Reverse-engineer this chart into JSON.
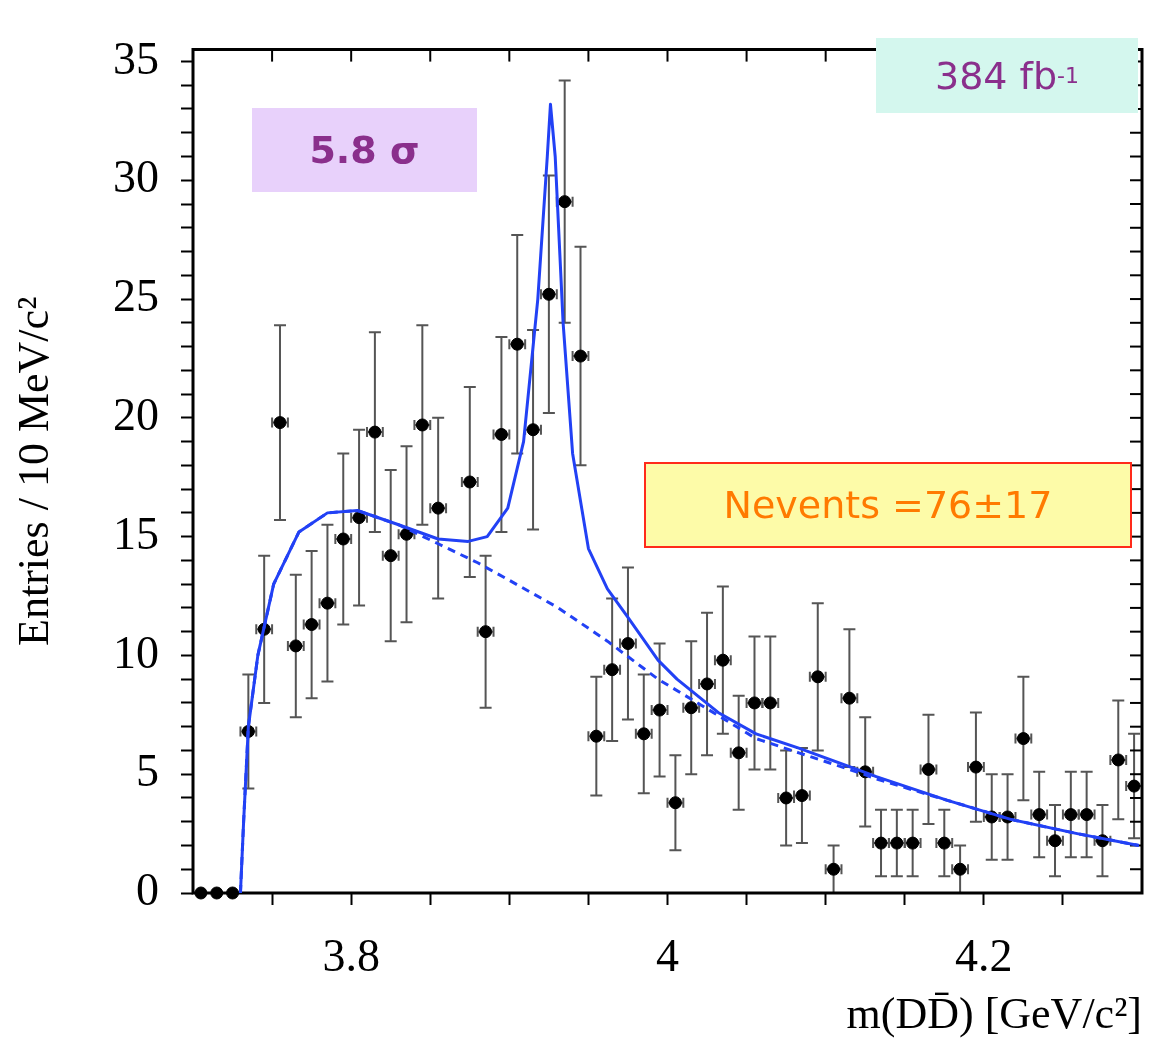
{
  "chart_data": {
    "type": "scatter",
    "xlabel": "m(DD̄) [GeV/c²]",
    "ylabel": "Entries / 10 MeV/c²",
    "annotations": [
      "5.8 σ",
      "384 fb$^{-1}$",
      "Nevents =76±17"
    ],
    "xlim": [
      3.7,
      4.3
    ],
    "ylim": [
      0,
      35.5
    ],
    "xticks": [
      {
        "value": 3.75,
        "label": null
      },
      3.8,
      {
        "value": 3.85,
        "label": null
      },
      {
        "value": 3.9,
        "label": null
      },
      {
        "value": 3.95,
        "label": null
      },
      4,
      {
        "value": 4.05,
        "label": null
      },
      {
        "value": 4.1,
        "label": null
      },
      {
        "value": 4.15,
        "label": null
      },
      4.2,
      {
        "value": 4.25,
        "label": null
      }
    ],
    "yticks": [
      0,
      {
        "value": 1,
        "label": null
      },
      {
        "value": 2,
        "label": null
      },
      {
        "value": 3,
        "label": null
      },
      {
        "value": 4,
        "label": null
      },
      5,
      {
        "value": 6,
        "label": null
      },
      {
        "value": 7,
        "label": null
      },
      {
        "value": 8,
        "label": null
      },
      {
        "value": 9,
        "label": null
      },
      10,
      {
        "value": 11,
        "label": null
      },
      {
        "value": 12,
        "label": null
      },
      {
        "value": 13,
        "label": null
      },
      {
        "value": 14,
        "label": null
      },
      15,
      {
        "value": 16,
        "label": null
      },
      {
        "value": 17,
        "label": null
      },
      {
        "value": 18,
        "label": null
      },
      {
        "value": 19,
        "label": null
      },
      20,
      {
        "value": 21,
        "label": null
      },
      {
        "value": 22,
        "label": null
      },
      {
        "value": 23,
        "label": null
      },
      {
        "value": 24,
        "label": null
      },
      25,
      {
        "value": 26,
        "label": null
      },
      {
        "value": 27,
        "label": null
      },
      {
        "value": 28,
        "label": null
      },
      {
        "value": 29,
        "label": null
      },
      30,
      {
        "value": 31,
        "label": null
      },
      {
        "value": 32,
        "label": null
      },
      {
        "value": 33,
        "label": null
      },
      {
        "value": 34,
        "label": null
      },
      35
    ],
    "series": [
      {
        "type": "scatter",
        "color": "#000000",
        "marker": "circle",
        "x": [
          3.705,
          3.715,
          3.725,
          3.735,
          3.745,
          3.755,
          3.765,
          3.775,
          3.785,
          3.795,
          3.805,
          3.815,
          3.825,
          3.835,
          3.845,
          3.855,
          3.865,
          3.875,
          3.885,
          3.895,
          3.905,
          3.915,
          3.925,
          3.935,
          3.945,
          3.955,
          3.965,
          3.975,
          3.985,
          3.995,
          4.005,
          4.015,
          4.025,
          4.035,
          4.045,
          4.055,
          4.065,
          4.075,
          4.085,
          4.095,
          4.105,
          4.115,
          4.125,
          4.135,
          4.145,
          4.155,
          4.165,
          4.175,
          4.185,
          4.195,
          4.205,
          4.215,
          4.225,
          4.235,
          4.245,
          4.255,
          4.265,
          4.275,
          4.285,
          4.295
        ],
        "values": [
          0,
          0,
          0,
          6.8,
          11.1,
          19.8,
          10.4,
          11.3,
          12.2,
          14.9,
          15.8,
          19.4,
          14.2,
          15.1,
          19.7,
          16.2,
          null,
          17.3,
          11.0,
          19.3,
          23.1,
          19.5,
          25.2,
          29.1,
          22.6,
          6.6,
          9.4,
          10.5,
          6.7,
          7.7,
          3.8,
          7.8,
          8.8,
          9.8,
          5.9,
          8.0,
          8.0,
          4.0,
          4.1,
          9.1,
          1.0,
          8.2,
          5.1,
          2.1,
          2.1,
          2.1,
          5.2,
          2.1,
          1.0,
          5.3,
          3.2,
          3.2,
          6.5,
          3.3,
          2.2,
          3.3,
          3.3,
          2.2,
          5.6,
          4.5
        ],
        "errors": [
          null,
          null,
          null,
          2.4,
          3.1,
          4.1,
          3.0,
          3.1,
          3.3,
          3.6,
          3.7,
          4.2,
          3.6,
          3.7,
          4.2,
          3.8,
          null,
          4.0,
          3.2,
          4.1,
          4.6,
          4.2,
          5.0,
          5.1,
          4.6,
          2.5,
          3.0,
          3.2,
          2.5,
          2.8,
          2.0,
          2.8,
          3.0,
          3.1,
          2.4,
          2.8,
          2.8,
          2.0,
          2.0,
          3.1,
          1.0,
          2.9,
          2.3,
          1.4,
          1.4,
          1.4,
          2.3,
          1.4,
          1.0,
          2.3,
          1.8,
          1.8,
          2.6,
          1.8,
          1.5,
          1.8,
          1.8,
          1.5,
          2.5,
          2.2
        ],
        "xerrors": [
          null,
          null,
          null,
          0.005,
          0.005,
          0.005,
          0.005,
          0.005,
          0.005,
          0.005,
          0.005,
          0.005,
          0.005,
          0.005,
          0.005,
          0.005,
          null,
          0.005,
          0.005,
          0.005,
          0.005,
          0.005,
          0.005,
          0.005,
          0.005,
          0.005,
          0.005,
          0.005,
          0.005,
          0.005,
          0.005,
          0.005,
          0.005,
          0.005,
          0.005,
          0.005,
          0.005,
          0.005,
          0.005,
          0.005,
          0.005,
          0.005,
          0.005,
          0.005,
          0.005,
          0.005,
          0.005,
          0.005,
          0.005,
          0.005,
          0.005,
          0.005,
          0.005,
          0.005,
          0.005,
          0.005,
          0.005,
          0.005,
          0.005,
          0.005
        ]
      },
      {
        "type": "line",
        "color": "#2241f5",
        "marker": "none",
        "line_style": "solid",
        "x": [
          3.73,
          3.732,
          3.735,
          3.741,
          3.751,
          3.767,
          3.785,
          3.804,
          3.83,
          3.855,
          3.874,
          3.886,
          3.899,
          3.909,
          3.918,
          3.924,
          3.926,
          3.929,
          3.934,
          3.94,
          3.95,
          3.962,
          3.975,
          3.994,
          4.006,
          4.032,
          4.056,
          4.083,
          4.124,
          4.132,
          4.177,
          4.217,
          4.259,
          4.298
        ],
        "values": [
          0,
          3,
          7,
          10,
          13,
          15.2,
          16.0,
          16.1,
          15.5,
          14.9,
          14.8,
          15.0,
          16.2,
          19,
          25,
          31,
          33.2,
          31,
          24,
          18.5,
          14.5,
          12.8,
          11.6,
          9.8,
          9.0,
          7.6,
          6.7,
          6.1,
          5.1,
          4.9,
          3.9,
          3.1,
          2.5,
          2.0
        ]
      },
      {
        "type": "line",
        "color": "#2241f5",
        "marker": "none",
        "line_style": "dashed",
        "x": [
          3.73,
          3.732,
          3.735,
          3.741,
          3.751,
          3.767,
          3.785,
          3.804,
          3.83,
          3.855,
          3.88,
          3.899,
          3.931,
          3.962,
          3.994,
          4.019,
          4.056,
          4.083,
          4.124,
          4.132,
          4.177,
          4.217,
          4.259,
          4.298
        ],
        "values": [
          0,
          3,
          7,
          10,
          13,
          15.2,
          16.0,
          16.1,
          15.5,
          14.7,
          13.9,
          13.2,
          12.0,
          10.6,
          9.0,
          8.0,
          6.5,
          5.9,
          5.0,
          4.8,
          3.9,
          3.1,
          2.5,
          2.0
        ]
      }
    ]
  }
}
